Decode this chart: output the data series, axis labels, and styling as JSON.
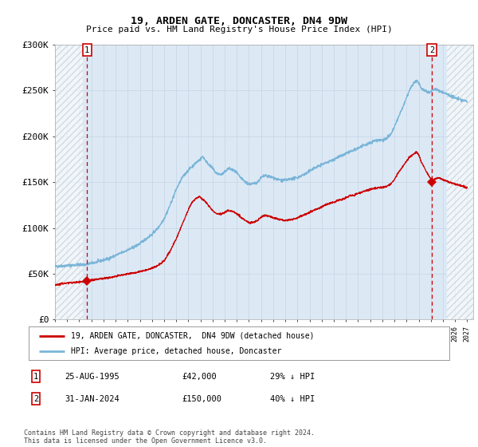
{
  "title": "19, ARDEN GATE, DONCASTER, DN4 9DW",
  "subtitle": "Price paid vs. HM Land Registry's House Price Index (HPI)",
  "bg_color": "#dce9f5",
  "fig_bg_color": "#ffffff",
  "hpi_color": "#7ab5d8",
  "price_color": "#cc0000",
  "marker_color": "#cc0000",
  "dashed_line_color": "#cc0000",
  "ylim": [
    0,
    300000
  ],
  "yticks": [
    0,
    50000,
    100000,
    150000,
    200000,
    250000,
    300000
  ],
  "ytick_labels": [
    "£0",
    "£50K",
    "£100K",
    "£150K",
    "£200K",
    "£250K",
    "£300K"
  ],
  "sale1_date_num": 1995.65,
  "sale1_price": 42000,
  "sale1_box": "1",
  "sale2_date_num": 2024.08,
  "sale2_price": 150000,
  "sale2_box": "2",
  "legend_line1": "19, ARDEN GATE, DONCASTER,  DN4 9DW (detached house)",
  "legend_line2": "HPI: Average price, detached house, Doncaster",
  "footnote": "Contains HM Land Registry data © Crown copyright and database right 2024.\nThis data is licensed under the Open Government Licence v3.0.",
  "table_row1": [
    "1",
    "25-AUG-1995",
    "£42,000",
    "29% ↓ HPI"
  ],
  "table_row2": [
    "2",
    "31-JAN-2024",
    "£150,000",
    "40% ↓ HPI"
  ],
  "xmin": 1993.0,
  "xmax": 2027.5,
  "hpi_anchors": [
    [
      1993.0,
      58000
    ],
    [
      1993.5,
      58500
    ],
    [
      1994.0,
      59000
    ],
    [
      1994.5,
      59500
    ],
    [
      1995.0,
      59800
    ],
    [
      1995.5,
      60000
    ],
    [
      1996.0,
      61500
    ],
    [
      1996.5,
      63000
    ],
    [
      1997.0,
      65000
    ],
    [
      1997.5,
      67000
    ],
    [
      1998.0,
      70000
    ],
    [
      1998.5,
      73000
    ],
    [
      1999.0,
      76000
    ],
    [
      1999.5,
      79000
    ],
    [
      2000.0,
      83000
    ],
    [
      2000.5,
      88000
    ],
    [
      2001.0,
      93000
    ],
    [
      2001.5,
      100000
    ],
    [
      2002.0,
      110000
    ],
    [
      2002.5,
      125000
    ],
    [
      2003.0,
      142000
    ],
    [
      2003.5,
      155000
    ],
    [
      2004.0,
      163000
    ],
    [
      2004.3,
      167000
    ],
    [
      2004.7,
      172000
    ],
    [
      2005.0,
      175000
    ],
    [
      2005.2,
      178000
    ],
    [
      2005.5,
      172000
    ],
    [
      2006.0,
      165000
    ],
    [
      2006.3,
      160000
    ],
    [
      2006.7,
      158000
    ],
    [
      2007.0,
      161000
    ],
    [
      2007.3,
      165000
    ],
    [
      2007.7,
      163000
    ],
    [
      2008.0,
      160000
    ],
    [
      2008.3,
      155000
    ],
    [
      2008.7,
      150000
    ],
    [
      2009.0,
      148000
    ],
    [
      2009.3,
      148000
    ],
    [
      2009.7,
      150000
    ],
    [
      2010.0,
      155000
    ],
    [
      2010.3,
      157000
    ],
    [
      2010.7,
      156000
    ],
    [
      2011.0,
      155000
    ],
    [
      2011.3,
      153000
    ],
    [
      2011.7,
      152000
    ],
    [
      2012.0,
      152000
    ],
    [
      2012.3,
      153000
    ],
    [
      2012.7,
      154000
    ],
    [
      2013.0,
      155000
    ],
    [
      2013.3,
      157000
    ],
    [
      2013.7,
      159000
    ],
    [
      2014.0,
      162000
    ],
    [
      2014.3,
      165000
    ],
    [
      2014.7,
      167000
    ],
    [
      2015.0,
      169000
    ],
    [
      2015.3,
      171000
    ],
    [
      2015.7,
      173000
    ],
    [
      2016.0,
      175000
    ],
    [
      2016.3,
      177000
    ],
    [
      2016.7,
      179000
    ],
    [
      2017.0,
      181000
    ],
    [
      2017.3,
      183000
    ],
    [
      2017.7,
      185000
    ],
    [
      2018.0,
      187000
    ],
    [
      2018.3,
      189000
    ],
    [
      2018.7,
      191000
    ],
    [
      2019.0,
      193000
    ],
    [
      2019.3,
      195000
    ],
    [
      2019.7,
      196000
    ],
    [
      2020.0,
      196000
    ],
    [
      2020.3,
      197000
    ],
    [
      2020.7,
      202000
    ],
    [
      2021.0,
      210000
    ],
    [
      2021.3,
      220000
    ],
    [
      2021.7,
      232000
    ],
    [
      2022.0,
      242000
    ],
    [
      2022.3,
      252000
    ],
    [
      2022.6,
      258000
    ],
    [
      2022.8,
      261000
    ],
    [
      2023.0,
      258000
    ],
    [
      2023.2,
      253000
    ],
    [
      2023.5,
      250000
    ],
    [
      2023.8,
      248000
    ],
    [
      2024.0,
      249000
    ],
    [
      2024.3,
      252000
    ],
    [
      2024.6,
      250000
    ],
    [
      2025.0,
      248000
    ],
    [
      2025.5,
      245000
    ],
    [
      2026.0,
      242000
    ],
    [
      2026.5,
      240000
    ],
    [
      2027.0,
      238000
    ]
  ],
  "price_anchors": [
    [
      1993.0,
      38000
    ],
    [
      1993.5,
      39000
    ],
    [
      1994.0,
      40000
    ],
    [
      1994.5,
      40500
    ],
    [
      1995.0,
      41000
    ],
    [
      1995.5,
      41500
    ],
    [
      1995.65,
      42000
    ],
    [
      1996.0,
      43000
    ],
    [
      1996.5,
      44000
    ],
    [
      1997.0,
      45000
    ],
    [
      1997.5,
      46000
    ],
    [
      1998.0,
      47000
    ],
    [
      1998.5,
      48500
    ],
    [
      1999.0,
      50000
    ],
    [
      1999.5,
      51000
    ],
    [
      2000.0,
      52500
    ],
    [
      2000.5,
      54000
    ],
    [
      2001.0,
      56000
    ],
    [
      2001.5,
      59000
    ],
    [
      2002.0,
      64000
    ],
    [
      2002.5,
      75000
    ],
    [
      2003.0,
      88000
    ],
    [
      2003.3,
      98000
    ],
    [
      2003.7,
      110000
    ],
    [
      2004.0,
      120000
    ],
    [
      2004.3,
      128000
    ],
    [
      2004.6,
      132000
    ],
    [
      2004.9,
      134000
    ],
    [
      2005.0,
      133000
    ],
    [
      2005.3,
      130000
    ],
    [
      2005.7,
      124000
    ],
    [
      2006.0,
      119000
    ],
    [
      2006.3,
      116000
    ],
    [
      2006.7,
      115000
    ],
    [
      2007.0,
      117000
    ],
    [
      2007.3,
      119000
    ],
    [
      2007.7,
      118000
    ],
    [
      2008.0,
      116000
    ],
    [
      2008.3,
      112000
    ],
    [
      2008.7,
      108000
    ],
    [
      2009.0,
      106000
    ],
    [
      2009.3,
      106000
    ],
    [
      2009.7,
      108000
    ],
    [
      2010.0,
      112000
    ],
    [
      2010.3,
      114000
    ],
    [
      2010.7,
      113000
    ],
    [
      2011.0,
      111000
    ],
    [
      2011.3,
      110000
    ],
    [
      2011.7,
      109000
    ],
    [
      2012.0,
      108000
    ],
    [
      2012.3,
      109000
    ],
    [
      2012.7,
      110000
    ],
    [
      2013.0,
      111000
    ],
    [
      2013.3,
      113000
    ],
    [
      2013.7,
      115000
    ],
    [
      2014.0,
      117000
    ],
    [
      2014.3,
      119000
    ],
    [
      2014.7,
      121000
    ],
    [
      2015.0,
      123000
    ],
    [
      2015.3,
      125000
    ],
    [
      2015.7,
      127000
    ],
    [
      2016.0,
      128000
    ],
    [
      2016.3,
      130000
    ],
    [
      2016.7,
      131000
    ],
    [
      2017.0,
      133000
    ],
    [
      2017.3,
      135000
    ],
    [
      2017.7,
      136000
    ],
    [
      2018.0,
      138000
    ],
    [
      2018.3,
      139000
    ],
    [
      2018.7,
      141000
    ],
    [
      2019.0,
      142000
    ],
    [
      2019.3,
      143000
    ],
    [
      2019.7,
      144000
    ],
    [
      2020.0,
      144000
    ],
    [
      2020.3,
      145000
    ],
    [
      2020.7,
      148000
    ],
    [
      2021.0,
      153000
    ],
    [
      2021.3,
      160000
    ],
    [
      2021.7,
      167000
    ],
    [
      2022.0,
      173000
    ],
    [
      2022.3,
      178000
    ],
    [
      2022.6,
      181000
    ],
    [
      2022.8,
      183000
    ],
    [
      2023.0,
      180000
    ],
    [
      2023.2,
      173000
    ],
    [
      2023.5,
      165000
    ],
    [
      2023.8,
      158000
    ],
    [
      2024.0,
      154000
    ],
    [
      2024.08,
      150000
    ],
    [
      2024.3,
      153000
    ],
    [
      2024.6,
      155000
    ],
    [
      2025.0,
      153000
    ],
    [
      2025.5,
      150000
    ],
    [
      2026.0,
      148000
    ],
    [
      2026.5,
      146000
    ],
    [
      2027.0,
      144000
    ]
  ]
}
